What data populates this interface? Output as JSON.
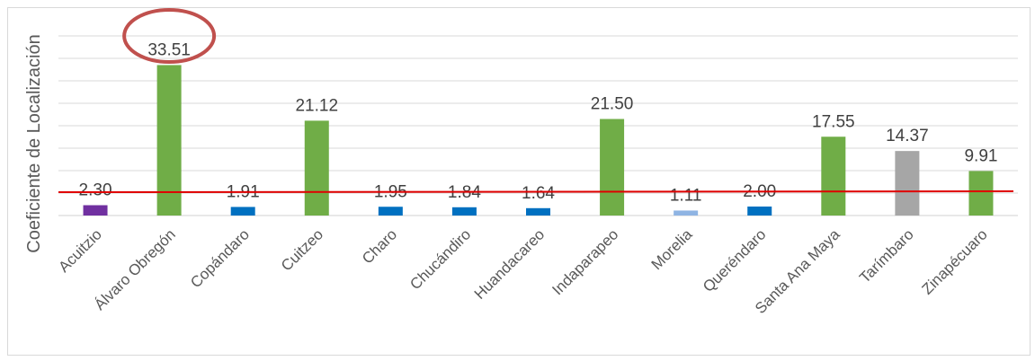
{
  "chart_data": {
    "type": "bar",
    "title": "",
    "ylabel": "Coeficiente de Localización",
    "xlabel": "",
    "ylim": [
      0,
      36
    ],
    "grid": true,
    "categories": [
      "Acuitzio",
      "Álvaro Obregón",
      "Copándaro",
      "Cuitzeo",
      "Charo",
      "Chucándiro",
      "Huandacareo",
      "Indaparapeo",
      "Morelia",
      "Queréndaro",
      "Santa Ana Maya",
      "Tarímbaro",
      "Zinapécuaro"
    ],
    "values": [
      2.3,
      33.51,
      1.91,
      21.12,
      1.95,
      1.84,
      1.64,
      21.5,
      1.11,
      2.0,
      17.55,
      14.37,
      9.91
    ],
    "value_labels": [
      "2.30",
      "33.51",
      "1.91",
      "21.12",
      "1.95",
      "1.84",
      "1.64",
      "21.50",
      "1.11",
      "2.00",
      "17.55",
      "14.37",
      "9.91"
    ],
    "bar_colors": [
      "#7030a0",
      "#70ad47",
      "#0070c0",
      "#70ad47",
      "#0070c0",
      "#0070c0",
      "#0070c0",
      "#70ad47",
      "#8fb4e3",
      "#0070c0",
      "#70ad47",
      "#a6a6a6",
      "#70ad47"
    ],
    "reference_line": {
      "color": "#e00000"
    },
    "highlight": {
      "category": "Álvaro Obregón",
      "shape": "ellipse",
      "color": "#c0504d"
    },
    "gridline_color": "#d9d9d9"
  }
}
